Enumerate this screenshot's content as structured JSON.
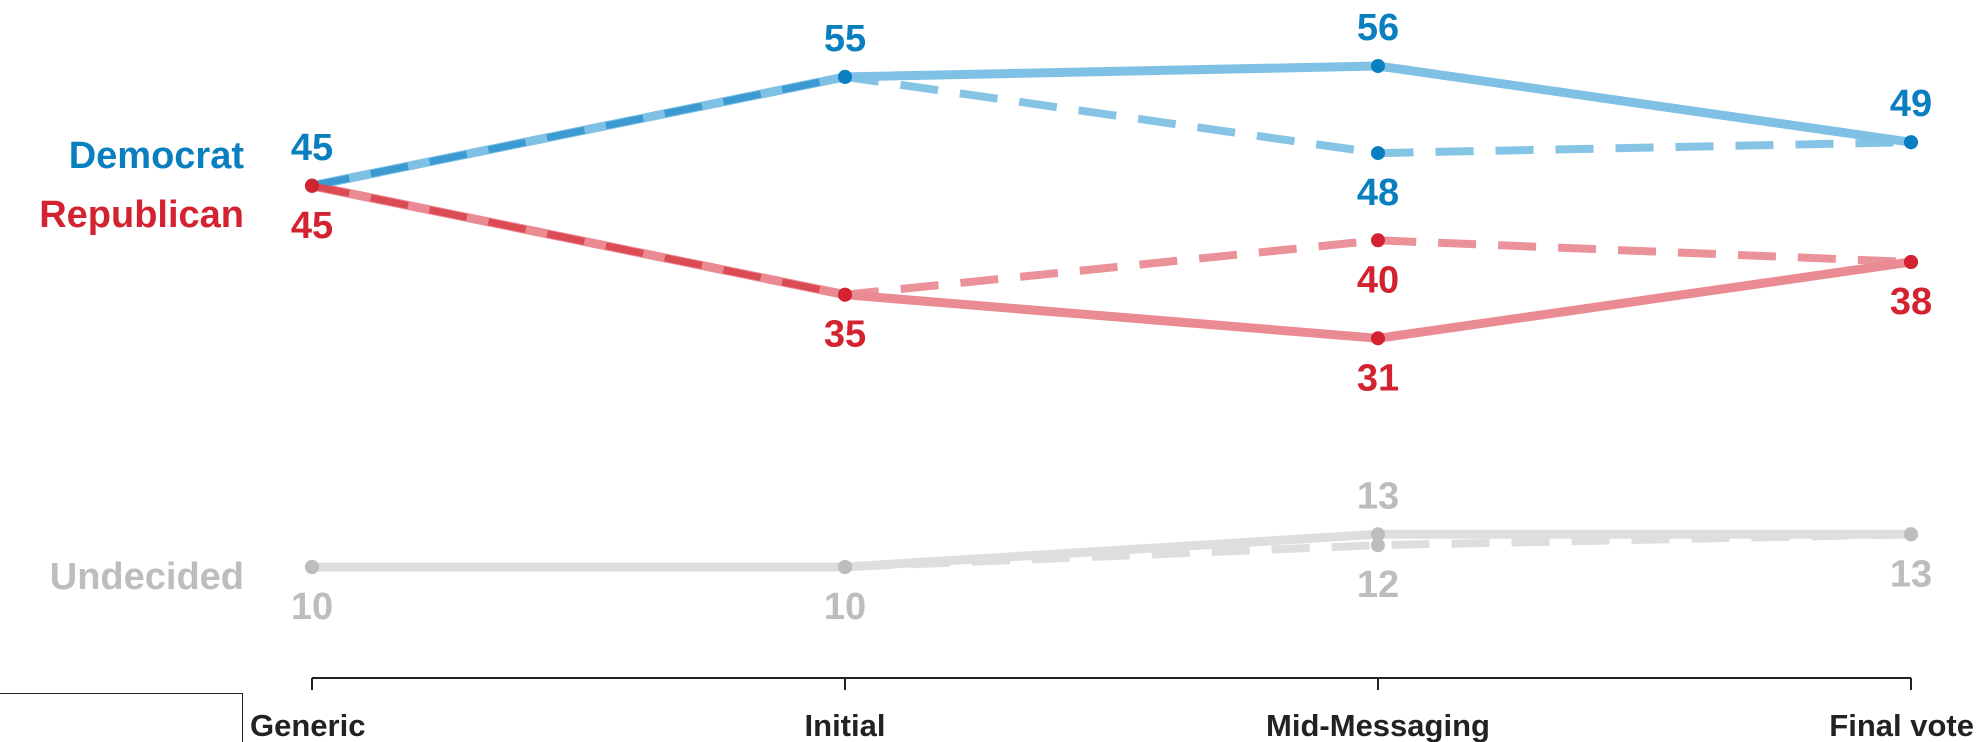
{
  "chart_data": {
    "type": "line",
    "categories": [
      "Generic",
      "Initial",
      "Mid-Messaging",
      "Final vote"
    ],
    "ylim": [
      0,
      60
    ],
    "grid": false,
    "series": [
      {
        "name": "Democrat",
        "values": [
          45,
          55,
          56,
          49
        ],
        "color": "#0a7fc0",
        "line_color": "#7fc1e4",
        "style": "solid"
      },
      {
        "name": "",
        "values": [
          45,
          55,
          48,
          49
        ],
        "color": "#0a7fc0",
        "line_color": "#7fc1e4",
        "style": "dashed"
      },
      {
        "name": "Republican",
        "values": [
          45,
          35,
          31,
          38
        ],
        "color": "#d32230",
        "line_color": "#ea8b94",
        "style": "solid"
      },
      {
        "name": "",
        "values": [
          45,
          35,
          40,
          38
        ],
        "color": "#d32230",
        "line_color": "#ea8b94",
        "style": "dashed"
      },
      {
        "name": "Undecided",
        "values": [
          10,
          10,
          13,
          13
        ],
        "color": "#bdbdbd",
        "line_color": "#dedede",
        "style": "solid"
      },
      {
        "name": "",
        "values": [
          10,
          10,
          12,
          13
        ],
        "color": "#bdbdbd",
        "line_color": "#dedede",
        "style": "dashed"
      }
    ],
    "data_labels": [
      {
        "series": 0,
        "point": 0,
        "text": "45",
        "pos": "above"
      },
      {
        "series": 0,
        "point": 1,
        "text": "55",
        "pos": "above"
      },
      {
        "series": 0,
        "point": 2,
        "text": "56",
        "pos": "above"
      },
      {
        "series": 0,
        "point": 3,
        "text": "49",
        "pos": "above"
      },
      {
        "series": 1,
        "point": 2,
        "text": "48",
        "pos": "below"
      },
      {
        "series": 2,
        "point": 0,
        "text": "45",
        "pos": "below"
      },
      {
        "series": 2,
        "point": 1,
        "text": "35",
        "pos": "below"
      },
      {
        "series": 2,
        "point": 2,
        "text": "31",
        "pos": "below"
      },
      {
        "series": 2,
        "point": 3,
        "text": "38",
        "pos": "below"
      },
      {
        "series": 3,
        "point": 2,
        "text": "40",
        "pos": "below"
      },
      {
        "series": 4,
        "point": 0,
        "text": "10",
        "pos": "below"
      },
      {
        "series": 4,
        "point": 1,
        "text": "10",
        "pos": "below"
      },
      {
        "series": 4,
        "point": 2,
        "text": "13",
        "pos": "above"
      },
      {
        "series": 4,
        "point": 3,
        "text": "13",
        "pos": "below"
      },
      {
        "series": 5,
        "point": 2,
        "text": "12",
        "pos": "below"
      }
    ],
    "series_labels": [
      "Democrat",
      "Republican",
      "Undecided"
    ]
  }
}
